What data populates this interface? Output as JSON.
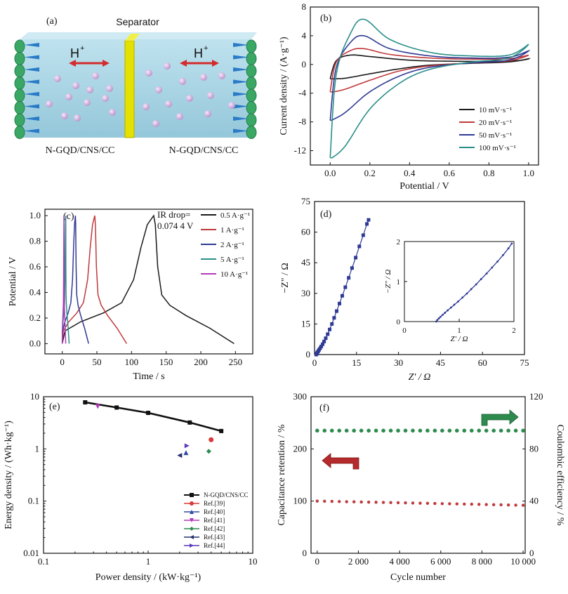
{
  "schematic": {
    "label": "(a)",
    "separator": "Separator",
    "ion_left": "H",
    "ion_right": "H",
    "ion_charge": "+",
    "electrode_left": "N-GQD/CNS/CC",
    "electrode_right": "N-GQD/CNS/CC",
    "colors": {
      "electrolyte": "#a9d6e5",
      "separator": "#e4e000",
      "collector": "#3aa765",
      "ion": "#c9a6d6",
      "arrow": "#d32c2c"
    }
  },
  "chart_data": [
    {
      "id": "b",
      "panel_label": "(b)",
      "type": "line",
      "xlabel": "Potential / V",
      "ylabel": "Current density / (A·g⁻¹)",
      "xlim": [
        -0.1,
        1.05
      ],
      "ylim": [
        -14,
        8
      ],
      "xticks": [
        "0.0",
        "0.2",
        "0.4",
        "0.6",
        "0.8",
        "1.0"
      ],
      "xtick_values": [
        0,
        0.2,
        0.4,
        0.6,
        0.8,
        1.0
      ],
      "yticks": [
        "-12",
        "-8",
        "-4",
        "0",
        "4",
        "8"
      ],
      "ytick_values": [
        -12,
        -8,
        -4,
        0,
        4,
        8
      ],
      "legend": "bottom-right",
      "series": [
        {
          "name": "10 mV·s⁻¹",
          "color": "#1a1a1a",
          "upper": [
            [
              0,
              -2.0
            ],
            [
              0.03,
              0.5
            ],
            [
              0.1,
              1.3
            ],
            [
              0.2,
              1.1
            ],
            [
              0.4,
              0.6
            ],
            [
              0.6,
              0.45
            ],
            [
              0.8,
              0.45
            ],
            [
              0.95,
              0.55
            ],
            [
              1.0,
              0.8
            ]
          ],
          "lower": [
            [
              1.0,
              0.8
            ],
            [
              0.9,
              0.35
            ],
            [
              0.7,
              0.15
            ],
            [
              0.5,
              -0.1
            ],
            [
              0.35,
              -0.6
            ],
            [
              0.2,
              -1.3
            ],
            [
              0.08,
              -1.9
            ],
            [
              0.02,
              -2.0
            ],
            [
              0,
              -2.0
            ]
          ]
        },
        {
          "name": "20 mV·s⁻¹",
          "color": "#c0393b",
          "upper": [
            [
              0,
              -3.8
            ],
            [
              0.03,
              0.3
            ],
            [
              0.1,
              1.9
            ],
            [
              0.17,
              2.2
            ],
            [
              0.3,
              1.4
            ],
            [
              0.5,
              0.9
            ],
            [
              0.7,
              0.75
            ],
            [
              0.9,
              0.8
            ],
            [
              1.0,
              1.3
            ]
          ],
          "lower": [
            [
              1.0,
              1.3
            ],
            [
              0.9,
              0.5
            ],
            [
              0.7,
              0.2
            ],
            [
              0.5,
              -0.2
            ],
            [
              0.35,
              -0.9
            ],
            [
              0.2,
              -2.2
            ],
            [
              0.08,
              -3.4
            ],
            [
              0.02,
              -3.8
            ],
            [
              0,
              -3.8
            ]
          ]
        },
        {
          "name": "50 mV·s⁻¹",
          "color": "#2f3a94",
          "upper": [
            [
              0,
              -7.8
            ],
            [
              0.03,
              -0.5
            ],
            [
              0.1,
              3.0
            ],
            [
              0.17,
              4.0
            ],
            [
              0.3,
              2.2
            ],
            [
              0.5,
              1.2
            ],
            [
              0.7,
              0.9
            ],
            [
              0.9,
              1.0
            ],
            [
              1.0,
              1.9
            ]
          ],
          "lower": [
            [
              1.0,
              1.9
            ],
            [
              0.9,
              0.6
            ],
            [
              0.7,
              0.2
            ],
            [
              0.5,
              -0.4
            ],
            [
              0.35,
              -1.6
            ],
            [
              0.2,
              -3.8
            ],
            [
              0.08,
              -6.6
            ],
            [
              0.02,
              -7.6
            ],
            [
              0,
              -7.8
            ]
          ]
        },
        {
          "name": "100 mV·s⁻¹",
          "color": "#2a8f8a",
          "upper": [
            [
              0,
              -13
            ],
            [
              0.03,
              -1.5
            ],
            [
              0.1,
              4.2
            ],
            [
              0.17,
              6.3
            ],
            [
              0.3,
              3.5
            ],
            [
              0.5,
              1.7
            ],
            [
              0.7,
              1.2
            ],
            [
              0.9,
              1.3
            ],
            [
              1.0,
              2.8
            ]
          ],
          "lower": [
            [
              1.0,
              2.8
            ],
            [
              0.9,
              0.9
            ],
            [
              0.7,
              0.3
            ],
            [
              0.5,
              -0.7
            ],
            [
              0.35,
              -2.6
            ],
            [
              0.2,
              -6.2
            ],
            [
              0.08,
              -11.2
            ],
            [
              0.02,
              -12.8
            ],
            [
              0,
              -13
            ]
          ]
        }
      ]
    },
    {
      "id": "c",
      "panel_label": "(c)",
      "type": "line",
      "xlabel": "Time / s",
      "ylabel": "Potential / V",
      "xlim": [
        -25,
        275
      ],
      "ylim": [
        -0.08,
        1.05
      ],
      "xticks": [
        "0",
        "50",
        "100",
        "150",
        "200",
        "250"
      ],
      "xtick_values": [
        0,
        50,
        100,
        150,
        200,
        250
      ],
      "yticks": [
        "0.0",
        "0.2",
        "0.4",
        "0.6",
        "0.8",
        "1.0"
      ],
      "ytick_values": [
        0,
        0.2,
        0.4,
        0.6,
        0.8,
        1.0
      ],
      "annotation": [
        "IR drop=",
        "0.074 4 V"
      ],
      "legend": "top-right",
      "series": [
        {
          "name": "0.5 A·g⁻¹",
          "color": "#1a1a1a",
          "charge_end": 132,
          "discharge_end": 248
        },
        {
          "name": "1 A·g⁻¹",
          "color": "#c0393b",
          "charge_end": 47,
          "discharge_end": 93
        },
        {
          "name": "2 A·g⁻¹",
          "color": "#2f3a94",
          "charge_end": 19,
          "discharge_end": 38
        },
        {
          "name": "5 A·g⁻¹",
          "color": "#2a8f8a",
          "charge_end": 5,
          "discharge_end": 10
        },
        {
          "name": "10 A·g⁻¹",
          "color": "#b13ab8",
          "charge_end": 2.5,
          "discharge_end": 5
        }
      ]
    },
    {
      "id": "d",
      "panel_label": "(d)",
      "type": "scatter",
      "xlabel": "Z' / Ω",
      "ylabel": "−Z\" / Ω",
      "xlim": [
        0,
        75
      ],
      "ylim": [
        0,
        75
      ],
      "xticks": [
        "0",
        "15",
        "30",
        "45",
        "60",
        "75"
      ],
      "xtick_values": [
        0,
        15,
        30,
        45,
        60,
        75
      ],
      "yticks": [
        "0",
        "15",
        "30",
        "45",
        "60",
        "75"
      ],
      "ytick_values": [
        0,
        15,
        30,
        45,
        60,
        75
      ],
      "color": "#2f3a94",
      "points": [
        [
          0.6,
          0
        ],
        [
          0.8,
          0.5
        ],
        [
          1.0,
          1.0
        ],
        [
          1.3,
          1.6
        ],
        [
          1.6,
          2.3
        ],
        [
          2.0,
          3.1
        ],
        [
          2.4,
          4.0
        ],
        [
          2.9,
          5.1
        ],
        [
          3.4,
          6.4
        ],
        [
          4.0,
          8.0
        ],
        [
          4.7,
          10
        ],
        [
          5.4,
          12.3
        ],
        [
          6.2,
          15
        ],
        [
          7.0,
          18
        ],
        [
          7.9,
          21.3
        ],
        [
          8.9,
          25
        ],
        [
          9.9,
          28.8
        ],
        [
          11,
          33
        ],
        [
          12.2,
          37.6
        ],
        [
          13.4,
          42.4
        ],
        [
          14.7,
          47.5
        ],
        [
          16,
          53
        ],
        [
          17.4,
          58.5
        ],
        [
          18.7,
          64
        ],
        [
          19.3,
          66
        ]
      ],
      "inset": {
        "xlabel": "Z' / Ω",
        "ylabel": "−Z\" / Ω",
        "xlim": [
          0,
          2
        ],
        "ylim": [
          0,
          2
        ],
        "xticks": [
          "0",
          "1",
          "2"
        ],
        "xtick_values": [
          0,
          1,
          2
        ],
        "yticks": [
          "0",
          "1",
          "2"
        ],
        "ytick_values": [
          0,
          1,
          2
        ],
        "points": [
          [
            0.58,
            0
          ],
          [
            0.6,
            0.04
          ],
          [
            0.63,
            0.08
          ],
          [
            0.66,
            0.12
          ],
          [
            0.7,
            0.17
          ],
          [
            0.74,
            0.22
          ],
          [
            0.79,
            0.28
          ],
          [
            0.85,
            0.35
          ],
          [
            0.91,
            0.42
          ],
          [
            0.98,
            0.5
          ],
          [
            1.06,
            0.6
          ],
          [
            1.14,
            0.7
          ],
          [
            1.22,
            0.81
          ],
          [
            1.31,
            0.93
          ],
          [
            1.4,
            1.06
          ],
          [
            1.5,
            1.2
          ],
          [
            1.6,
            1.35
          ],
          [
            1.7,
            1.5
          ],
          [
            1.8,
            1.66
          ],
          [
            1.9,
            1.83
          ],
          [
            1.96,
            1.95
          ]
        ]
      }
    },
    {
      "id": "e",
      "panel_label": "(e)",
      "type": "scatter",
      "xlabel": "Power density / (kW·kg⁻¹)",
      "ylabel": "Energy density / (Wh·kg⁻¹)",
      "xscale": "log",
      "yscale": "log",
      "xlim": [
        0.1,
        10
      ],
      "ylim": [
        0.01,
        10
      ],
      "xticks": [
        "0.1",
        "1",
        "10"
      ],
      "xtick_values": [
        0.1,
        1,
        10
      ],
      "yticks": [
        "0.01",
        "0.1",
        "1",
        "10"
      ],
      "ytick_values": [
        0.01,
        0.1,
        1,
        10
      ],
      "legend": "bottom-right",
      "line_series": {
        "name": "N-GQD/CNS/CC",
        "color": "#111111",
        "x": [
          0.25,
          0.5,
          1.0,
          2.5,
          5.0
        ],
        "y": [
          7.8,
          6.2,
          4.9,
          3.2,
          2.2
        ]
      },
      "point_series": [
        {
          "name": "Ref.[39]",
          "color": "#d93a3a",
          "marker": "circle",
          "points": [
            [
              4.0,
              1.5
            ]
          ]
        },
        {
          "name": "Ref.[40]",
          "color": "#2f49a8",
          "marker": "triangle-up",
          "points": [
            [
              2.3,
              0.85
            ]
          ]
        },
        {
          "name": "Ref.[41]",
          "color": "#b13ab8",
          "marker": "triangle-down",
          "points": [
            [
              0.33,
              6.5
            ]
          ]
        },
        {
          "name": "Ref.[42]",
          "color": "#2e8b4e",
          "marker": "diamond",
          "points": [
            [
              3.8,
              0.9
            ]
          ]
        },
        {
          "name": "Ref.[43]",
          "color": "#283370",
          "marker": "triangle-left",
          "points": [
            [
              2.0,
              0.75
            ]
          ]
        },
        {
          "name": "Ref.[44]",
          "color": "#5b3ab8",
          "marker": "triangle-right",
          "points": [
            [
              2.35,
              1.15
            ]
          ]
        }
      ]
    },
    {
      "id": "f",
      "panel_label": "(f)",
      "type": "scatter",
      "xlabel": "Cycle number",
      "ylabel": "Capacitance retention / %",
      "ylabel_right": "Coulombic efficiency / %",
      "xlim": [
        -300,
        10100
      ],
      "ylim": [
        0,
        300
      ],
      "ylim_right": [
        0,
        120
      ],
      "xticks": [
        "0",
        "2 000",
        "4 000",
        "6 000",
        "8 000",
        "10 000"
      ],
      "xtick_values": [
        0,
        2000,
        4000,
        6000,
        8000,
        10000
      ],
      "yticks": [
        "0",
        "100",
        "200",
        "300"
      ],
      "ytick_values": [
        0,
        100,
        200,
        300
      ],
      "yticks_right": [
        "0",
        "40",
        "80",
        "120"
      ],
      "ytick_values_right": [
        0,
        40,
        80,
        120
      ],
      "series": [
        {
          "name": "capacitance retention",
          "color": "#c0393b",
          "axis": "left",
          "start": 100,
          "end": 92
        },
        {
          "name": "coulombic efficiency",
          "color": "#2e8b4e",
          "axis": "right",
          "start": 94,
          "end": 94
        }
      ],
      "arrow_colors": {
        "left": "#b52a2a",
        "right": "#2e8b4e"
      }
    }
  ]
}
